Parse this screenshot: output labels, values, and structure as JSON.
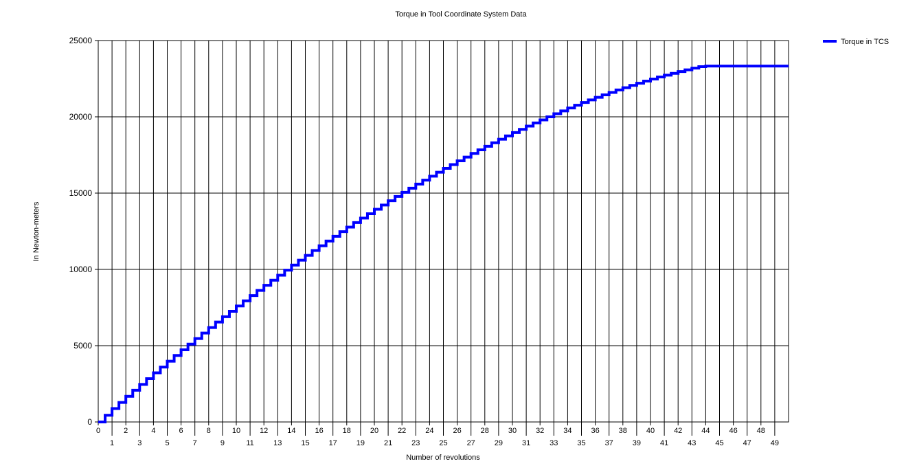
{
  "chart_data": {
    "type": "line",
    "title": "Torque in Tool Coordinate System Data",
    "xlabel": "Number of revolutions",
    "ylabel": "In Newton-meters",
    "xlim": [
      0,
      50
    ],
    "ylim": [
      0,
      25000
    ],
    "x_ticks": [
      0,
      1,
      2,
      3,
      4,
      5,
      6,
      7,
      8,
      9,
      10,
      11,
      12,
      13,
      14,
      15,
      16,
      17,
      18,
      19,
      20,
      21,
      22,
      23,
      24,
      25,
      26,
      27,
      28,
      29,
      30,
      31,
      32,
      33,
      34,
      35,
      36,
      37,
      38,
      39,
      40,
      41,
      42,
      43,
      44,
      45,
      46,
      47,
      48,
      49
    ],
    "y_ticks": [
      0,
      5000,
      10000,
      15000,
      20000,
      25000
    ],
    "step_width": 0.5,
    "grid": true,
    "legend_position": "top-right",
    "series": [
      {
        "name": "Torque in TCS",
        "color": "#0000ff",
        "x": [
          0,
          0.5,
          1,
          1.5,
          2,
          2.5,
          3,
          3.5,
          4,
          4.5,
          5,
          5.5,
          6,
          6.5,
          7,
          7.5,
          8,
          8.5,
          9,
          9.5,
          10,
          10.5,
          11,
          11.5,
          12,
          12.5,
          13,
          13.5,
          14,
          14.5,
          15,
          15.5,
          16,
          16.5,
          17,
          17.5,
          18,
          18.5,
          19,
          19.5,
          20,
          20.5,
          21,
          21.5,
          22,
          22.5,
          23,
          23.5,
          24,
          24.5,
          25,
          25.5,
          26,
          26.5,
          27,
          27.5,
          28,
          28.5,
          29,
          29.5,
          30,
          30.5,
          31,
          31.5,
          32,
          32.5,
          33,
          33.5,
          34,
          34.5,
          35,
          35.5,
          36,
          36.5,
          37,
          37.5,
          38,
          38.5,
          39,
          39.5,
          40,
          40.5,
          41,
          41.5,
          42,
          42.5,
          43,
          43.5,
          44,
          44.5,
          45,
          45.5,
          46,
          46.5,
          47,
          47.5,
          48,
          48.5,
          49,
          49.5
        ],
        "values": [
          0,
          440,
          880,
          1280,
          1680,
          2080,
          2460,
          2840,
          3220,
          3600,
          3980,
          4360,
          4730,
          5100,
          5470,
          5830,
          6190,
          6550,
          6900,
          7250,
          7600,
          7940,
          8280,
          8620,
          8960,
          9290,
          9620,
          9950,
          10280,
          10600,
          10920,
          11240,
          11550,
          11860,
          12170,
          12470,
          12770,
          13070,
          13360,
          13650,
          13940,
          14220,
          14500,
          14780,
          15050,
          15320,
          15590,
          15850,
          16110,
          16370,
          16620,
          16870,
          17120,
          17360,
          17600,
          17840,
          18070,
          18300,
          18530,
          18750,
          18970,
          19180,
          19390,
          19600,
          19800,
          20000,
          20200,
          20390,
          20580,
          20760,
          20940,
          21110,
          21280,
          21440,
          21600,
          21760,
          21910,
          22060,
          22200,
          22340,
          22480,
          22610,
          22730,
          22850,
          22970,
          23080,
          23190,
          23290,
          23330,
          23330,
          23330,
          23330,
          23330,
          23330,
          23330,
          23330,
          23330,
          23330,
          23330,
          23330
        ]
      }
    ]
  }
}
